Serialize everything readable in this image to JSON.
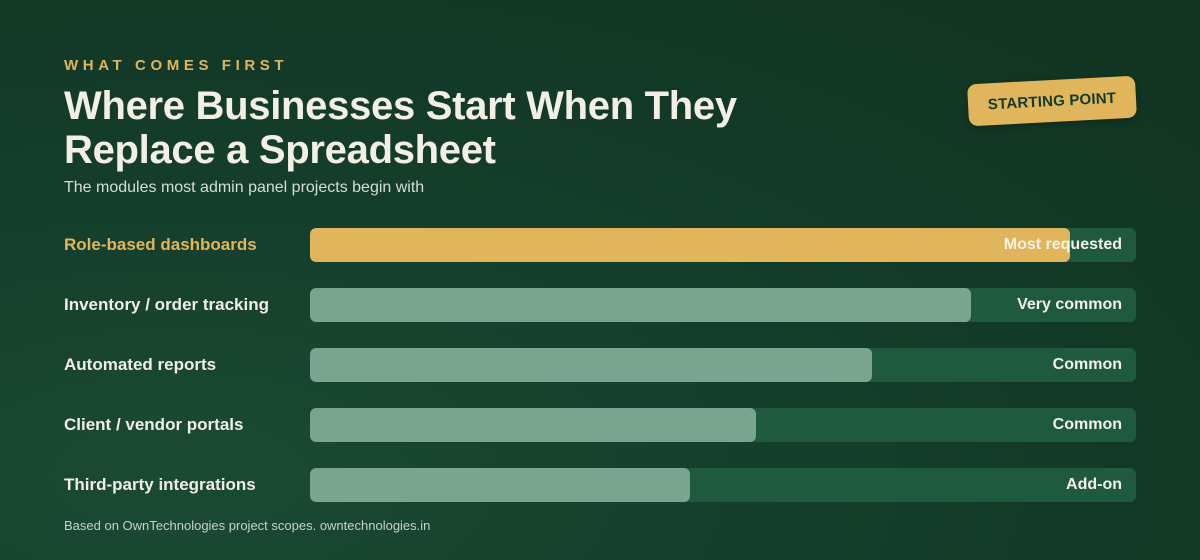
{
  "header": {
    "eyebrow": "WHAT COMES FIRST",
    "title": "Where Businesses Start When They Replace a Spreadsheet",
    "subtitle": "The modules most admin panel projects begin with",
    "badge": "STARTING POINT"
  },
  "footnote": "Based on OwnTechnologies project scopes. owntechnologies.in",
  "colors": {
    "background": "#123826",
    "accent": "#e0b55b",
    "bar_fill": "#7aa390",
    "bar_track": "#1f5a3e",
    "text": "#f3efe4"
  },
  "chart_data": {
    "type": "bar",
    "orientation": "horizontal",
    "categories": [
      "Role-based dashboards",
      "Inventory / order tracking",
      "Automated reports",
      "Client / vendor portals",
      "Third-party integrations"
    ],
    "values": [
      92,
      80,
      68,
      54,
      46
    ],
    "value_labels": [
      "Most requested",
      "Very common",
      "Common",
      "Common",
      "Add-on"
    ],
    "highlighted_index": 0,
    "xlim": [
      0,
      100
    ],
    "title": "Where Businesses Start When They Replace a Spreadsheet",
    "subtitle": "The modules most admin panel projects begin with",
    "grid": false
  }
}
